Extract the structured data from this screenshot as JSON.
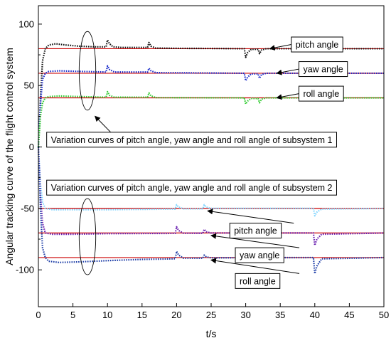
{
  "chart_data": {
    "type": "line",
    "xlabel": "t/s",
    "ylabel": "Angular tracking curve of the flight control system",
    "xlim": [
      0,
      50
    ],
    "ylim": [
      -130,
      115
    ],
    "xticks": [
      0,
      5,
      10,
      15,
      20,
      25,
      30,
      35,
      40,
      45,
      50
    ],
    "yticks": [
      -100,
      -50,
      0,
      50,
      100
    ],
    "grid": false,
    "colors": {
      "reference": "#cc0000",
      "pitch1": "#111111",
      "yaw1": "#1a2ccc",
      "roll1": "#33cc33",
      "pitch2": "#7fd4ff",
      "yaw2": "#6a1fb0",
      "roll2": "#1f3fa8"
    },
    "series": [
      {
        "key": "ref_pitch1",
        "kind": "reference",
        "colorKey": "reference",
        "points": [
          [
            0,
            80
          ],
          [
            50,
            80
          ]
        ]
      },
      {
        "key": "ref_yaw1",
        "kind": "reference",
        "colorKey": "reference",
        "points": [
          [
            0,
            60
          ],
          [
            50,
            60
          ]
        ]
      },
      {
        "key": "ref_roll1",
        "kind": "reference",
        "colorKey": "reference",
        "points": [
          [
            0,
            40
          ],
          [
            50,
            40
          ]
        ]
      },
      {
        "key": "ref_pitch2",
        "kind": "reference",
        "colorKey": "reference",
        "points": [
          [
            0,
            -50
          ],
          [
            50,
            -50
          ]
        ]
      },
      {
        "key": "ref_yaw2",
        "kind": "reference",
        "colorKey": "reference",
        "points": [
          [
            0,
            -70
          ],
          [
            50,
            -70
          ]
        ]
      },
      {
        "key": "ref_roll2",
        "kind": "reference",
        "colorKey": "reference",
        "points": [
          [
            0,
            -90
          ],
          [
            50,
            -90
          ]
        ]
      },
      {
        "key": "pitch1",
        "kind": "tracked",
        "colorKey": "pitch1",
        "points": [
          [
            0,
            0
          ],
          [
            0.3,
            40
          ],
          [
            0.6,
            70
          ],
          [
            1,
            80
          ],
          [
            1.5,
            83
          ],
          [
            2.5,
            84
          ],
          [
            4,
            83
          ],
          [
            6,
            82
          ],
          [
            8,
            81.5
          ],
          [
            9.8,
            81.5
          ],
          [
            10,
            87
          ],
          [
            10.3,
            84
          ],
          [
            10.8,
            81.5
          ],
          [
            12,
            81
          ],
          [
            15.8,
            81
          ],
          [
            16,
            85
          ],
          [
            16.3,
            82
          ],
          [
            17,
            80.5
          ],
          [
            20,
            80.3
          ],
          [
            25,
            80.2
          ],
          [
            29.8,
            80
          ],
          [
            30,
            73
          ],
          [
            30.3,
            77
          ],
          [
            30.8,
            79.5
          ],
          [
            31.8,
            79.5
          ],
          [
            32,
            76
          ],
          [
            32.3,
            79
          ],
          [
            33,
            80
          ],
          [
            40,
            80
          ],
          [
            50,
            80
          ]
        ]
      },
      {
        "key": "yaw1",
        "kind": "tracked",
        "colorKey": "yaw1",
        "points": [
          [
            0,
            0
          ],
          [
            0.3,
            35
          ],
          [
            0.6,
            55
          ],
          [
            1,
            60
          ],
          [
            1.5,
            61.5
          ],
          [
            3,
            62
          ],
          [
            6,
            61.5
          ],
          [
            9.8,
            61
          ],
          [
            10,
            66
          ],
          [
            10.3,
            63
          ],
          [
            11,
            61
          ],
          [
            15.8,
            61
          ],
          [
            16,
            64
          ],
          [
            16.3,
            62
          ],
          [
            17,
            60.5
          ],
          [
            25,
            60.2
          ],
          [
            29.8,
            60
          ],
          [
            30,
            54
          ],
          [
            30.3,
            57
          ],
          [
            30.8,
            59.5
          ],
          [
            31.8,
            59.5
          ],
          [
            32,
            56
          ],
          [
            32.3,
            59
          ],
          [
            33,
            60
          ],
          [
            50,
            60
          ]
        ]
      },
      {
        "key": "roll1",
        "kind": "tracked",
        "colorKey": "roll1",
        "points": [
          [
            0,
            0
          ],
          [
            0.3,
            25
          ],
          [
            0.6,
            36
          ],
          [
            1,
            40
          ],
          [
            1.5,
            41
          ],
          [
            3,
            41.5
          ],
          [
            6,
            41
          ],
          [
            9.8,
            40.5
          ],
          [
            10,
            45
          ],
          [
            10.3,
            42
          ],
          [
            11,
            40.5
          ],
          [
            15.8,
            40.5
          ],
          [
            16,
            44
          ],
          [
            16.3,
            41.5
          ],
          [
            17,
            40.2
          ],
          [
            29.8,
            40
          ],
          [
            30,
            35
          ],
          [
            30.3,
            37.5
          ],
          [
            30.8,
            39.5
          ],
          [
            31.8,
            39.5
          ],
          [
            32,
            36
          ],
          [
            32.3,
            39
          ],
          [
            33,
            40
          ],
          [
            50,
            40
          ]
        ]
      },
      {
        "key": "pitch2",
        "kind": "tracked",
        "colorKey": "pitch2",
        "points": [
          [
            0,
            0
          ],
          [
            0.3,
            -30
          ],
          [
            0.6,
            -45
          ],
          [
            1,
            -50
          ],
          [
            2,
            -51
          ],
          [
            5,
            -51
          ],
          [
            10,
            -51
          ],
          [
            19.8,
            -50.5
          ],
          [
            20,
            -47
          ],
          [
            20.3,
            -49
          ],
          [
            21,
            -50.3
          ],
          [
            23.8,
            -50.3
          ],
          [
            24,
            -47
          ],
          [
            24.3,
            -49
          ],
          [
            25,
            -50
          ],
          [
            39.8,
            -50
          ],
          [
            40,
            -56
          ],
          [
            40.3,
            -53
          ],
          [
            41,
            -50.5
          ],
          [
            50,
            -50
          ]
        ]
      },
      {
        "key": "yaw2",
        "kind": "tracked",
        "colorKey": "yaw2",
        "points": [
          [
            0,
            0
          ],
          [
            0.3,
            -40
          ],
          [
            0.6,
            -62
          ],
          [
            1,
            -70
          ],
          [
            2,
            -71
          ],
          [
            5,
            -71
          ],
          [
            10,
            -70.5
          ],
          [
            19.8,
            -70.3
          ],
          [
            20,
            -65
          ],
          [
            20.3,
            -68
          ],
          [
            21,
            -70.2
          ],
          [
            23.8,
            -70.2
          ],
          [
            24,
            -67
          ],
          [
            24.3,
            -69
          ],
          [
            25,
            -70
          ],
          [
            39.8,
            -70
          ],
          [
            40,
            -80
          ],
          [
            40.3,
            -75
          ],
          [
            41,
            -71
          ],
          [
            50,
            -70
          ]
        ]
      },
      {
        "key": "roll2",
        "kind": "tracked",
        "colorKey": "roll2",
        "points": [
          [
            0,
            0
          ],
          [
            0.3,
            -50
          ],
          [
            0.6,
            -82
          ],
          [
            1,
            -90
          ],
          [
            1.5,
            -93
          ],
          [
            3,
            -94
          ],
          [
            6,
            -93.5
          ],
          [
            10,
            -92.5
          ],
          [
            15,
            -91.5
          ],
          [
            19.8,
            -91
          ],
          [
            20,
            -85
          ],
          [
            20.3,
            -88
          ],
          [
            21,
            -90.5
          ],
          [
            23.8,
            -90.5
          ],
          [
            24,
            -88
          ],
          [
            24.3,
            -89.5
          ],
          [
            25,
            -90.2
          ],
          [
            39.8,
            -90
          ],
          [
            40,
            -103
          ],
          [
            40.3,
            -97
          ],
          [
            41,
            -91
          ],
          [
            50,
            -90
          ]
        ]
      }
    ],
    "annotations": [
      {
        "key": "pitch1",
        "text": "pitch angle",
        "box": {
          "x": 36.6,
          "y": 89.5
        },
        "tip": {
          "x": 33.5,
          "y": 80
        }
      },
      {
        "key": "yaw1",
        "text": "yaw angle",
        "box": {
          "x": 37.7,
          "y": 69.5
        },
        "tip": {
          "x": 34.5,
          "y": 60
        }
      },
      {
        "key": "roll1",
        "text": "roll angle",
        "box": {
          "x": 37.7,
          "y": 49.5
        },
        "tip": {
          "x": 34.5,
          "y": 40
        }
      },
      {
        "key": "sub1",
        "text": "Variation curves of pitch angle, yaw angle and roll angle of subsystem 1",
        "box": {
          "x": 1.2,
          "y": 12
        },
        "tip": {
          "x": 8.2,
          "y": 25
        }
      },
      {
        "key": "sub2",
        "text": "Variation curves of pitch angle, yaw angle and roll angle of subsystem 2",
        "box": {
          "x": 1.2,
          "y": -27
        },
        "tip": null
      },
      {
        "key": "pitch2",
        "text": "pitch angle",
        "box": {
          "x": 27.7,
          "y": -62
        },
        "tip": {
          "x": 24.5,
          "y": -52
        }
      },
      {
        "key": "yaw2",
        "text": "yaw angle",
        "box": {
          "x": 28.5,
          "y": -82
        },
        "tip": {
          "x": 25,
          "y": -72
        }
      },
      {
        "key": "roll2",
        "text": "roll angle",
        "box": {
          "x": 28.5,
          "y": -103
        },
        "tip": {
          "x": 25,
          "y": -92
        }
      }
    ],
    "ellipses": [
      {
        "key": "group1",
        "cx": 7.1,
        "cy": 62,
        "rx": 1.2,
        "ry": 32
      },
      {
        "key": "group2",
        "cx": 7.1,
        "cy": -73,
        "rx": 1.2,
        "ry": 31
      }
    ]
  }
}
